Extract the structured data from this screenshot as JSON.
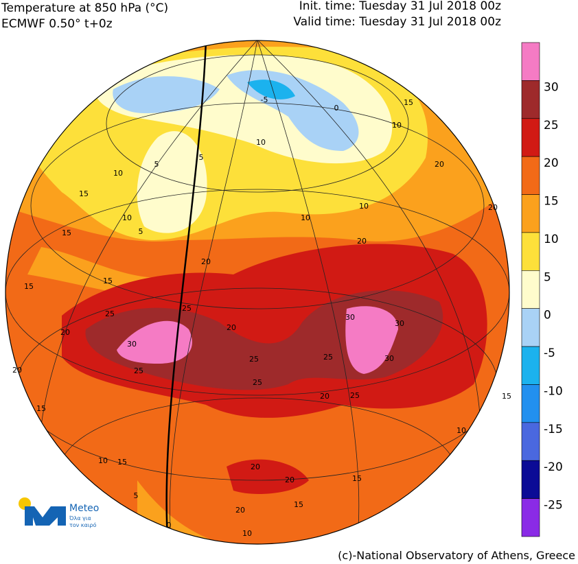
{
  "header": {
    "title": "Temperature at 850 hPa (°C)",
    "model": "ECMWF 0.50° t+0z",
    "init_time": "Init. time: Tuesday 31 Jul 2018 00z",
    "valid_time": "Valid time: Tuesday 31 Jul 2018 00z"
  },
  "colorbar": {
    "colors": [
      "#f57bc4",
      "#9e2a2b",
      "#d11a14",
      "#f26a17",
      "#fba11d",
      "#fde03a",
      "#fffccc",
      "#a9d2f6",
      "#1bb2ee",
      "#2290ef",
      "#4a68df",
      "#0b0b96",
      "#8a2be6"
    ],
    "levels": [
      30,
      25,
      20,
      15,
      10,
      5,
      0,
      -5,
      -10,
      -15,
      -20,
      -25
    ]
  },
  "map": {
    "contour_labels": [
      -5,
      0,
      5,
      10,
      5,
      10,
      15,
      10,
      5,
      10,
      10,
      15,
      10,
      20,
      20,
      15,
      15,
      15,
      20,
      25,
      30,
      25,
      20,
      25,
      30,
      30,
      30,
      25,
      20,
      25,
      25,
      25,
      20,
      15,
      10,
      15,
      20,
      20,
      15,
      5,
      20,
      15,
      10,
      0,
      10,
      15,
      20,
      20
    ]
  },
  "logo": {
    "name": "Meteo",
    "slogan_1": "Όλα για",
    "slogan_2": "τον καιρό"
  },
  "credit": "(c)-National Observatory of Athens, Greece"
}
